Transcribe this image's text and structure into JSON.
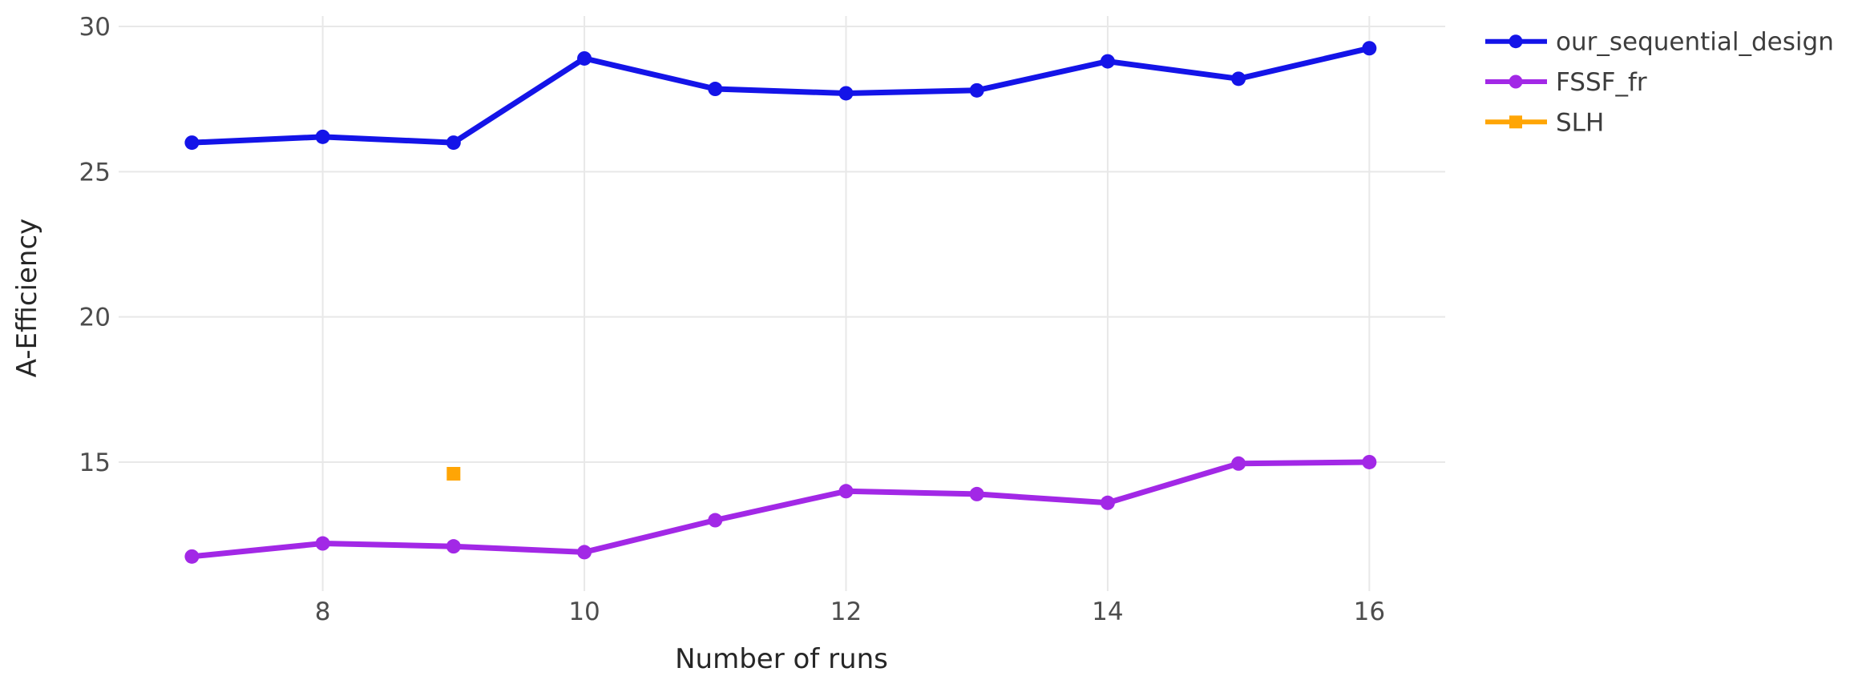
{
  "chart_data": {
    "type": "line",
    "xlabel": "Number of runs",
    "ylabel": "A-Efficiency",
    "x": [
      7,
      8,
      9,
      10,
      11,
      12,
      13,
      14,
      15,
      16
    ],
    "series": [
      {
        "name": "our_sequential_design",
        "color": "#1414e8",
        "marker": "circle",
        "values": [
          26.0,
          26.2,
          26.0,
          28.9,
          27.85,
          27.7,
          27.8,
          28.8,
          28.2,
          29.25
        ]
      },
      {
        "name": "FSSF_fr",
        "color": "#a228e6",
        "marker": "circle",
        "values": [
          11.75,
          12.2,
          12.1,
          11.9,
          13.0,
          14.0,
          13.9,
          13.6,
          14.95,
          15.0
        ]
      },
      {
        "name": "SLH",
        "color": "#ffa505",
        "marker": "square",
        "x": [
          9
        ],
        "values": [
          14.6
        ]
      }
    ],
    "xticks": [
      8,
      10,
      12,
      14,
      16
    ],
    "yticks": [
      15,
      20,
      25,
      30
    ],
    "xlim": [
      6.44,
      16.58
    ],
    "ylim": [
      10.56,
      30.36
    ],
    "grid": true,
    "gridcolor": "#e8e8e8",
    "legend_position": "top-right"
  }
}
